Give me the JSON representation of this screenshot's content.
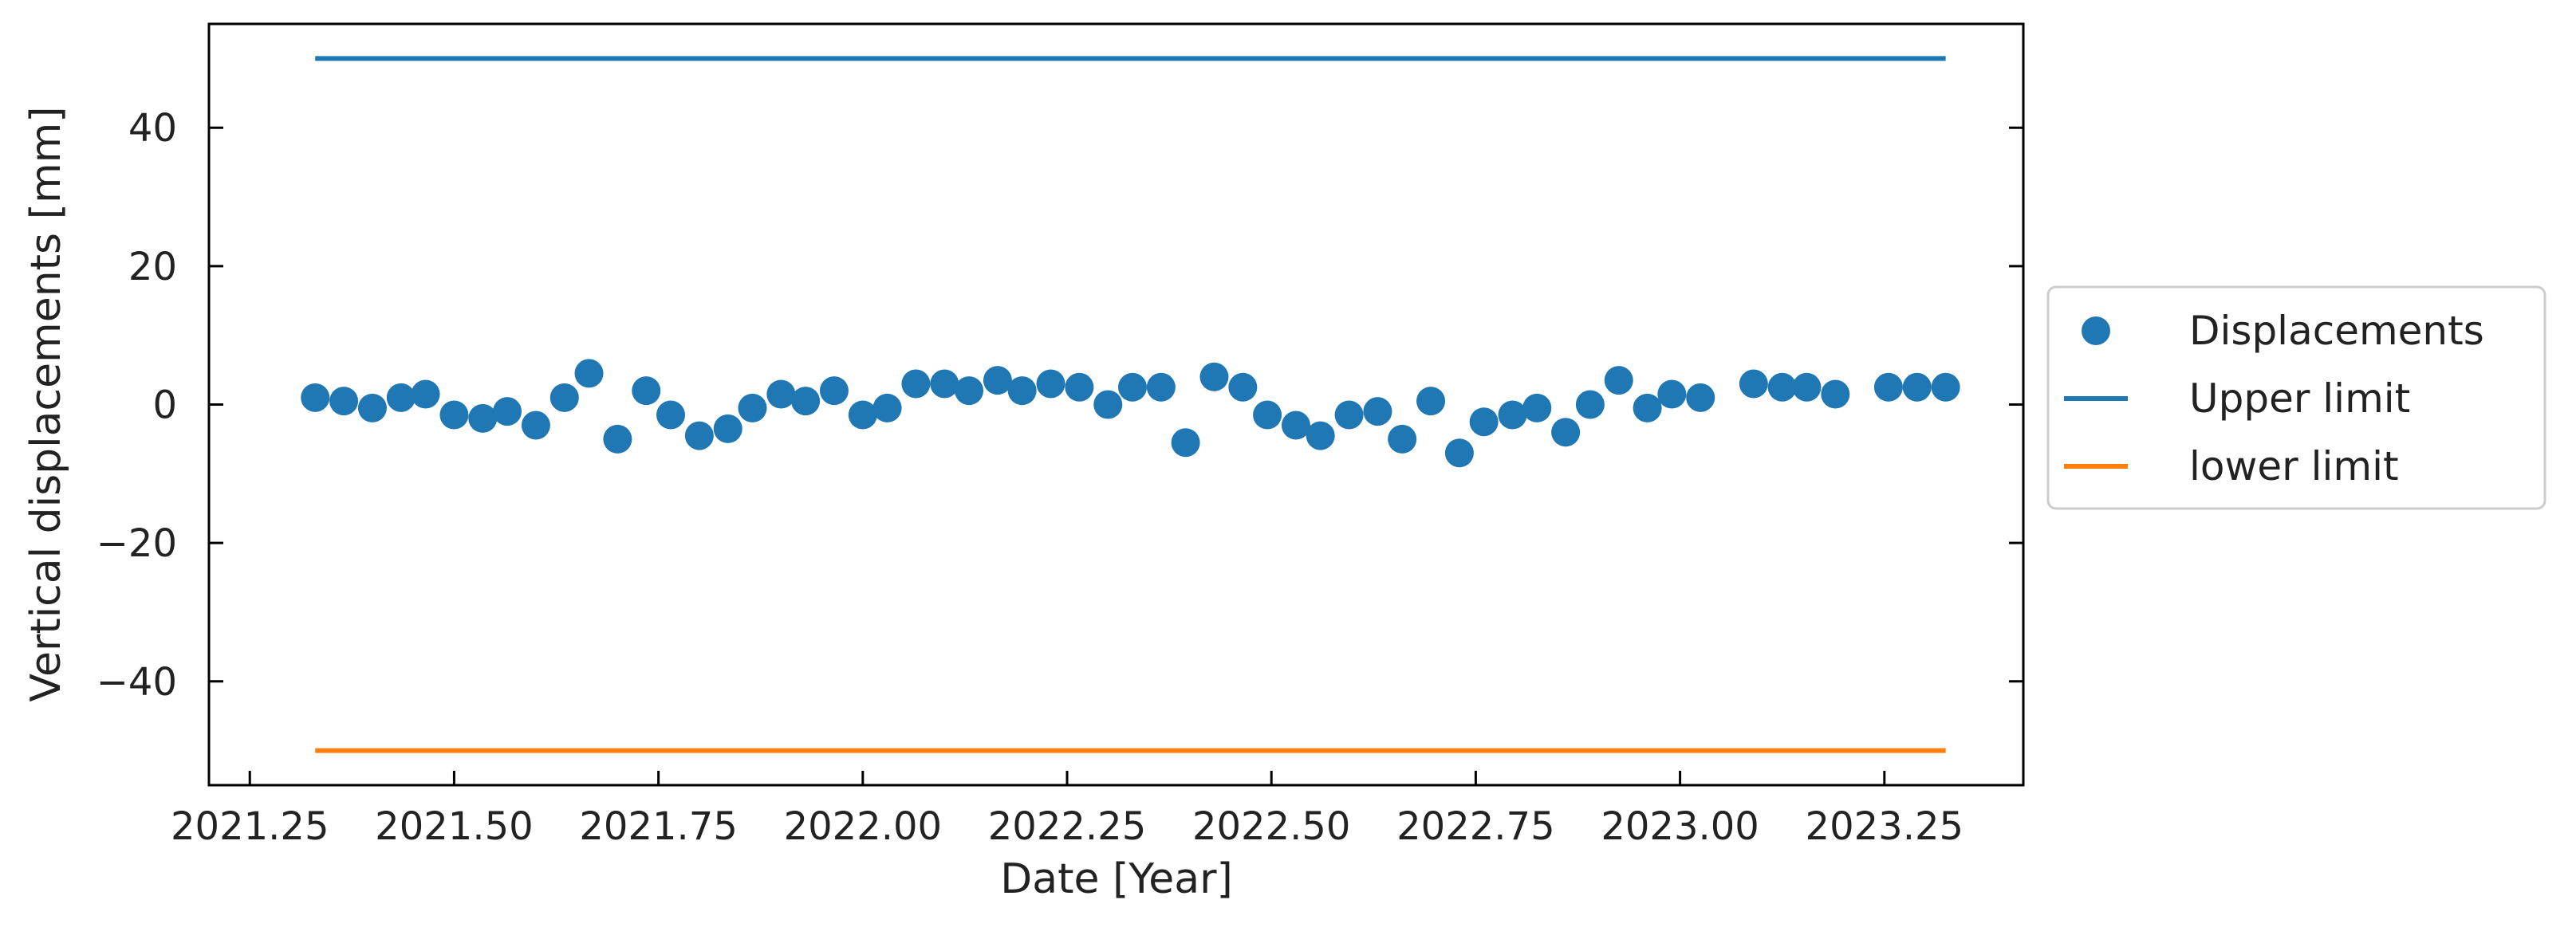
{
  "chart_data": {
    "type": "scatter",
    "xlabel": "Date [Year]",
    "ylabel": "Vertical displacements [mm]",
    "xlim": [
      2021.2,
      2023.42
    ],
    "ylim": [
      -55,
      55
    ],
    "xticks": [
      2021.25,
      2021.5,
      2021.75,
      2022.0,
      2022.25,
      2022.5,
      2022.75,
      2023.0,
      2023.25
    ],
    "xtick_labels": [
      "2021.25",
      "2021.50",
      "2021.75",
      "2022.00",
      "2022.25",
      "2022.50",
      "2022.75",
      "2023.00",
      "2023.25"
    ],
    "yticks": [
      -40,
      -20,
      0,
      20,
      40
    ],
    "ytick_labels": [
      "−40",
      "−20",
      "0",
      "20",
      "40"
    ],
    "grid": false,
    "legend_position": "right-outside",
    "series": [
      {
        "name": "Displacements",
        "kind": "scatter",
        "color": "#1f77b4",
        "x": [
          2021.33,
          2021.365,
          2021.4,
          2021.435,
          2021.465,
          2021.5,
          2021.535,
          2021.565,
          2021.6,
          2021.635,
          2021.665,
          2021.7,
          2021.735,
          2021.765,
          2021.8,
          2021.835,
          2021.865,
          2021.9,
          2021.93,
          2021.965,
          2022.0,
          2022.03,
          2022.065,
          2022.1,
          2022.13,
          2022.165,
          2022.195,
          2022.23,
          2022.265,
          2022.3,
          2022.33,
          2022.365,
          2022.395,
          2022.43,
          2022.465,
          2022.495,
          2022.53,
          2022.56,
          2022.595,
          2022.63,
          2022.66,
          2022.695,
          2022.73,
          2022.76,
          2022.795,
          2022.825,
          2022.86,
          2022.89,
          2022.925,
          2022.96,
          2022.99,
          2023.025,
          2023.09,
          2023.125,
          2023.155,
          2023.19,
          2023.255,
          2023.29,
          2023.325
        ],
        "y": [
          1,
          0.5,
          -0.5,
          1,
          1.5,
          -1.5,
          -2,
          -1,
          -3,
          1,
          4.5,
          -5,
          2,
          -1.5,
          -4.5,
          -3.5,
          -0.5,
          1.5,
          0.5,
          2,
          -1.5,
          -0.5,
          3,
          3,
          2,
          3.5,
          2,
          3,
          2.5,
          0,
          2.5,
          2.5,
          -5.5,
          4,
          2.5,
          -1.5,
          -3,
          -4.5,
          -1.5,
          -1,
          -5,
          0.5,
          -7,
          -2.5,
          -1.5,
          -0.5,
          -4,
          0,
          3.5,
          -0.5,
          1.5,
          1,
          3,
          2.5,
          2.5,
          1.5,
          2.5,
          2.5,
          2.5
        ]
      },
      {
        "name": "Upper limit",
        "kind": "line",
        "color": "#1f77b4",
        "x": [
          2021.33,
          2023.325
        ],
        "y": [
          50,
          50
        ]
      },
      {
        "name": "lower limit",
        "kind": "line",
        "color": "#ff7f0e",
        "x": [
          2021.33,
          2023.325
        ],
        "y": [
          -50,
          -50
        ]
      }
    ]
  }
}
